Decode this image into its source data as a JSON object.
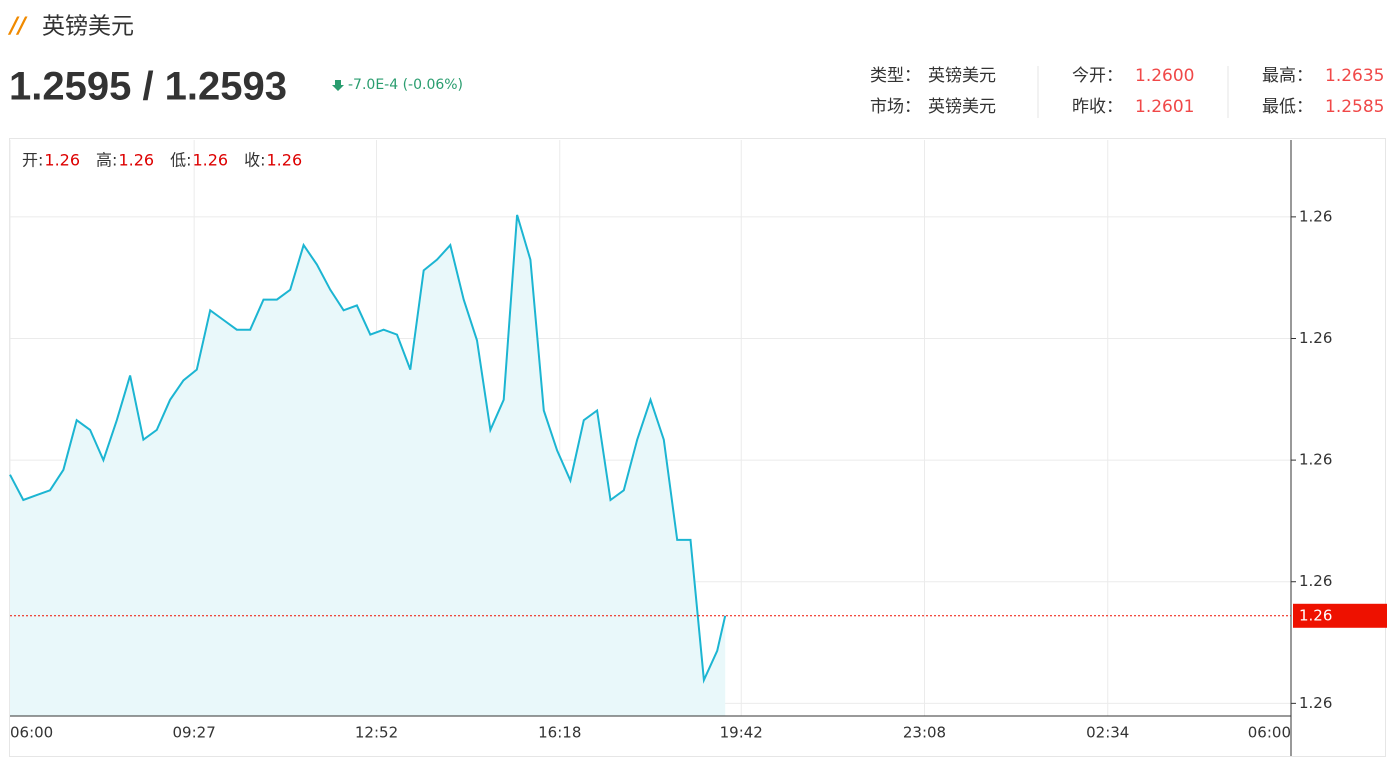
{
  "header": {
    "title": "英镑美元",
    "price": "1.2595 / 1.2593",
    "change": "-7.0E-4 (-0.06%)"
  },
  "info": [
    [
      {
        "label": "类型：",
        "value": "英镑美元"
      },
      {
        "label": "市场：",
        "value": "英镑美元"
      }
    ],
    [
      {
        "label": "今开：",
        "value": "1.2600"
      },
      {
        "label": "昨收：",
        "value": "1.2601"
      }
    ],
    [
      {
        "label": "最高：",
        "value": "1.2635"
      },
      {
        "label": "最低：",
        "value": "1.2585"
      }
    ]
  ],
  "ohlc": [
    {
      "label": "开:",
      "value": "1.26"
    },
    {
      "label": "高:",
      "value": "1.26"
    },
    {
      "label": "低:",
      "value": "1.26"
    },
    {
      "label": "收:",
      "value": "1.26"
    }
  ],
  "chart_data": {
    "type": "area",
    "x": [
      0,
      15,
      30,
      45,
      60,
      75,
      90,
      105,
      120,
      135,
      150,
      165,
      180,
      195,
      210,
      225,
      240,
      255,
      270,
      285,
      300,
      315,
      330,
      345,
      360,
      375,
      390,
      405,
      420,
      435,
      450,
      465,
      480,
      495,
      510,
      525,
      540,
      555,
      570,
      585,
      600,
      615,
      630,
      645,
      660,
      675,
      690,
      705,
      720,
      735,
      750,
      765,
      780,
      795,
      804
    ],
    "series": [
      {
        "color": "#1cb5d2",
        "fill": "#e9f8fa",
        "values": [
          1.26085,
          1.26059,
          1.26064,
          1.26069,
          1.2609,
          1.26141,
          1.26131,
          1.261,
          1.26141,
          1.26187,
          1.26121,
          1.26131,
          1.26162,
          1.26182,
          1.26193,
          1.26254,
          1.26244,
          1.26234,
          1.26234,
          1.26265,
          1.26265,
          1.26275,
          1.26321,
          1.26301,
          1.26275,
          1.26254,
          1.26259,
          1.26229,
          1.26234,
          1.26229,
          1.26193,
          1.26295,
          1.26306,
          1.26321,
          1.26265,
          1.26223,
          1.26131,
          1.26162,
          1.26352,
          1.26306,
          1.26151,
          1.2611,
          1.26079,
          1.26141,
          1.26151,
          1.26059,
          1.26069,
          1.26121,
          1.26162,
          1.26121,
          1.26018,
          1.26018,
          1.25874,
          1.25904,
          1.2594
        ]
      }
    ],
    "xlim": [
      0,
      1440
    ],
    "xticks": [
      {
        "value": 0,
        "label": "06:00"
      },
      {
        "value": 207,
        "label": "09:27"
      },
      {
        "value": 412,
        "label": "12:52"
      },
      {
        "value": 618,
        "label": "16:18"
      },
      {
        "value": 822,
        "label": "19:42"
      },
      {
        "value": 1028,
        "label": "23:08"
      },
      {
        "value": 1234,
        "label": "02:34"
      },
      {
        "value": 1440,
        "label": "06:00"
      }
    ],
    "ylim": [
      1.25837,
      1.26429
    ],
    "yticks": [
      {
        "value": 1.2635,
        "label": "1.26"
      },
      {
        "value": 1.26225,
        "label": "1.26"
      },
      {
        "value": 1.261,
        "label": "1.26"
      },
      {
        "value": 1.25975,
        "label": "1.26"
      },
      {
        "value": 1.2585,
        "label": "1.26"
      }
    ],
    "grid": true,
    "last_price": {
      "value": 1.2594,
      "label": "1.26",
      "color": "#ee1100"
    }
  }
}
